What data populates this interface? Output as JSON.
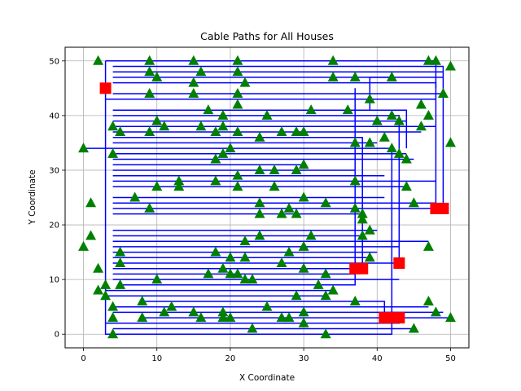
{
  "chart_data": {
    "type": "scatter",
    "title": "Cable Paths for All Houses",
    "xlabel": "X Coordinate",
    "ylabel": "Y Coordinate",
    "xlim": [
      -2.5,
      52.5
    ],
    "ylim": [
      -2.5,
      52.5
    ],
    "xticks": [
      0,
      10,
      20,
      30,
      40,
      50
    ],
    "yticks": [
      0,
      10,
      20,
      30,
      40,
      50
    ],
    "grid": true,
    "colors": {
      "cable": "#0000ff",
      "house": "#008000",
      "battery": "#ff0000",
      "grid": "#b0b0b0"
    },
    "series": [
      {
        "kind": "battery",
        "marker": "square",
        "points": [
          [
            3,
            45
          ],
          [
            37,
            12
          ],
          [
            38,
            12
          ],
          [
            43,
            13
          ],
          [
            41,
            3
          ],
          [
            42,
            3
          ],
          [
            43,
            3
          ],
          [
            48,
            23
          ],
          [
            49,
            23
          ]
        ]
      },
      {
        "kind": "house",
        "marker": "triangle",
        "points": [
          [
            2,
            50
          ],
          [
            9,
            50
          ],
          [
            15,
            50
          ],
          [
            21,
            50
          ],
          [
            34,
            50
          ],
          [
            47,
            50
          ],
          [
            48,
            50
          ],
          [
            50,
            49
          ],
          [
            9,
            48
          ],
          [
            16,
            48
          ],
          [
            21,
            48
          ],
          [
            10,
            47
          ],
          [
            34,
            47
          ],
          [
            37,
            47
          ],
          [
            42,
            47
          ],
          [
            15,
            46
          ],
          [
            22,
            46
          ],
          [
            9,
            44
          ],
          [
            15,
            44
          ],
          [
            21,
            44
          ],
          [
            49,
            44
          ],
          [
            39,
            43
          ],
          [
            21,
            42
          ],
          [
            46,
            42
          ],
          [
            17,
            41
          ],
          [
            31,
            41
          ],
          [
            36,
            41
          ],
          [
            47,
            40
          ],
          [
            19,
            40
          ],
          [
            25,
            40
          ],
          [
            42,
            40
          ],
          [
            43,
            39
          ],
          [
            10,
            39
          ],
          [
            40,
            39
          ],
          [
            4,
            38
          ],
          [
            11,
            38
          ],
          [
            19,
            38
          ],
          [
            16,
            38
          ],
          [
            46,
            38
          ],
          [
            5,
            37
          ],
          [
            9,
            37
          ],
          [
            18,
            37
          ],
          [
            21,
            37
          ],
          [
            27,
            37
          ],
          [
            29,
            37
          ],
          [
            30,
            37
          ],
          [
            24,
            36
          ],
          [
            41,
            36
          ],
          [
            37,
            35
          ],
          [
            39,
            35
          ],
          [
            50,
            35
          ],
          [
            0,
            34
          ],
          [
            20,
            34
          ],
          [
            42,
            34
          ],
          [
            19,
            33
          ],
          [
            4,
            33
          ],
          [
            43,
            33
          ],
          [
            18,
            32
          ],
          [
            44,
            32
          ],
          [
            30,
            31
          ],
          [
            24,
            30
          ],
          [
            26,
            30
          ],
          [
            29,
            30
          ],
          [
            21,
            29
          ],
          [
            37,
            28
          ],
          [
            18,
            28
          ],
          [
            13,
            28
          ],
          [
            10,
            27
          ],
          [
            21,
            27
          ],
          [
            26,
            27
          ],
          [
            44,
            27
          ],
          [
            13,
            27
          ],
          [
            7,
            25
          ],
          [
            30,
            25
          ],
          [
            1,
            24
          ],
          [
            24,
            24
          ],
          [
            33,
            24
          ],
          [
            45,
            24
          ],
          [
            9,
            23
          ],
          [
            37,
            23
          ],
          [
            28,
            23
          ],
          [
            24,
            22
          ],
          [
            27,
            22
          ],
          [
            29,
            22
          ],
          [
            38,
            22
          ],
          [
            38,
            21
          ],
          [
            39,
            19
          ],
          [
            1,
            18
          ],
          [
            24,
            18
          ],
          [
            31,
            18
          ],
          [
            38,
            18
          ],
          [
            22,
            17
          ],
          [
            0,
            16
          ],
          [
            30,
            16
          ],
          [
            47,
            16
          ],
          [
            5,
            15
          ],
          [
            18,
            15
          ],
          [
            28,
            15
          ],
          [
            20,
            14
          ],
          [
            22,
            14
          ],
          [
            39,
            14
          ],
          [
            5,
            13
          ],
          [
            27,
            13
          ],
          [
            2,
            12
          ],
          [
            19,
            12
          ],
          [
            30,
            12
          ],
          [
            20,
            11
          ],
          [
            17,
            11
          ],
          [
            21,
            11
          ],
          [
            33,
            11
          ],
          [
            10,
            10
          ],
          [
            22,
            10
          ],
          [
            23,
            10
          ],
          [
            3,
            9
          ],
          [
            5,
            9
          ],
          [
            32,
            9
          ],
          [
            2,
            8
          ],
          [
            34,
            8
          ],
          [
            3,
            7
          ],
          [
            29,
            7
          ],
          [
            33,
            7
          ],
          [
            8,
            6
          ],
          [
            37,
            6
          ],
          [
            47,
            6
          ],
          [
            12,
            5
          ],
          [
            25,
            5
          ],
          [
            4,
            5
          ],
          [
            11,
            4
          ],
          [
            15,
            4
          ],
          [
            19,
            4
          ],
          [
            30,
            4
          ],
          [
            48,
            4
          ],
          [
            4,
            3
          ],
          [
            8,
            3
          ],
          [
            16,
            3
          ],
          [
            19,
            3
          ],
          [
            20,
            3
          ],
          [
            27,
            3
          ],
          [
            28,
            3
          ],
          [
            50,
            3
          ],
          [
            30,
            2
          ],
          [
            23,
            1
          ],
          [
            45,
            1
          ],
          [
            4,
            0
          ],
          [
            33,
            0
          ]
        ]
      }
    ],
    "cables": [
      [
        [
          3,
          50
        ],
        [
          48,
          50
        ],
        [
          48,
          45
        ]
      ],
      [
        [
          3,
          50
        ],
        [
          3,
          0
        ],
        [
          42,
          0
        ],
        [
          42,
          3
        ]
      ],
      [
        [
          4,
          49
        ],
        [
          49,
          49
        ],
        [
          49,
          23
        ]
      ],
      [
        [
          4,
          48
        ],
        [
          49,
          48
        ]
      ],
      [
        [
          4,
          47
        ],
        [
          49,
          47
        ]
      ],
      [
        [
          4,
          46
        ],
        [
          48,
          46
        ],
        [
          48,
          23
        ]
      ],
      [
        [
          4,
          44
        ],
        [
          49,
          44
        ]
      ],
      [
        [
          3,
          43
        ],
        [
          48,
          43
        ]
      ],
      [
        [
          4,
          41
        ],
        [
          44,
          41
        ],
        [
          44,
          34
        ]
      ],
      [
        [
          4,
          40
        ],
        [
          43,
          40
        ],
        [
          43,
          13
        ]
      ],
      [
        [
          4,
          39
        ],
        [
          44,
          39
        ]
      ],
      [
        [
          4,
          38
        ],
        [
          48,
          38
        ]
      ],
      [
        [
          4,
          37
        ],
        [
          46,
          37
        ]
      ],
      [
        [
          4,
          36
        ],
        [
          38,
          36
        ],
        [
          38,
          12
        ]
      ],
      [
        [
          4,
          35
        ],
        [
          40,
          35
        ]
      ],
      [
        [
          0,
          34
        ],
        [
          42,
          34
        ],
        [
          42,
          3
        ]
      ],
      [
        [
          4,
          33
        ],
        [
          44,
          33
        ]
      ],
      [
        [
          4,
          32
        ],
        [
          45,
          32
        ]
      ],
      [
        [
          4,
          31
        ],
        [
          30,
          31
        ]
      ],
      [
        [
          4,
          30
        ],
        [
          37,
          30
        ]
      ],
      [
        [
          4,
          29
        ],
        [
          41,
          29
        ]
      ],
      [
        [
          4,
          28
        ],
        [
          48,
          28
        ]
      ],
      [
        [
          4,
          27
        ],
        [
          44,
          27
        ]
      ],
      [
        [
          4,
          25
        ],
        [
          41,
          25
        ]
      ],
      [
        [
          4,
          24
        ],
        [
          48,
          24
        ]
      ],
      [
        [
          4,
          23
        ],
        [
          48,
          23
        ]
      ],
      [
        [
          4,
          22
        ],
        [
          38,
          22
        ]
      ],
      [
        [
          4,
          19
        ],
        [
          40,
          19
        ]
      ],
      [
        [
          4,
          18
        ],
        [
          38,
          18
        ]
      ],
      [
        [
          4,
          17
        ],
        [
          47,
          17
        ]
      ],
      [
        [
          4,
          16
        ],
        [
          43,
          16
        ]
      ],
      [
        [
          4,
          15
        ],
        [
          40,
          15
        ]
      ],
      [
        [
          4,
          14
        ],
        [
          39,
          14
        ]
      ],
      [
        [
          4,
          13
        ],
        [
          43,
          13
        ]
      ],
      [
        [
          4,
          12
        ],
        [
          37,
          12
        ]
      ],
      [
        [
          4,
          11
        ],
        [
          37,
          11
        ]
      ],
      [
        [
          4,
          10
        ],
        [
          43,
          10
        ]
      ],
      [
        [
          5,
          9
        ],
        [
          37,
          9
        ],
        [
          37,
          12
        ]
      ],
      [
        [
          3,
          8
        ],
        [
          34,
          8
        ]
      ],
      [
        [
          3,
          7
        ],
        [
          33,
          7
        ]
      ],
      [
        [
          8,
          6
        ],
        [
          41,
          6
        ],
        [
          41,
          3
        ]
      ],
      [
        [
          4,
          5
        ],
        [
          47,
          5
        ]
      ],
      [
        [
          4,
          4
        ],
        [
          49,
          4
        ]
      ],
      [
        [
          8,
          3
        ],
        [
          50,
          3
        ]
      ],
      [
        [
          3,
          2
        ],
        [
          43,
          2
        ],
        [
          43,
          3
        ]
      ],
      [
        [
          4,
          1
        ],
        [
          45,
          1
        ]
      ],
      [
        [
          39,
          41
        ],
        [
          39,
          47
        ],
        [
          42,
          47
        ]
      ],
      [
        [
          37,
          12
        ],
        [
          37,
          45
        ]
      ]
    ]
  }
}
